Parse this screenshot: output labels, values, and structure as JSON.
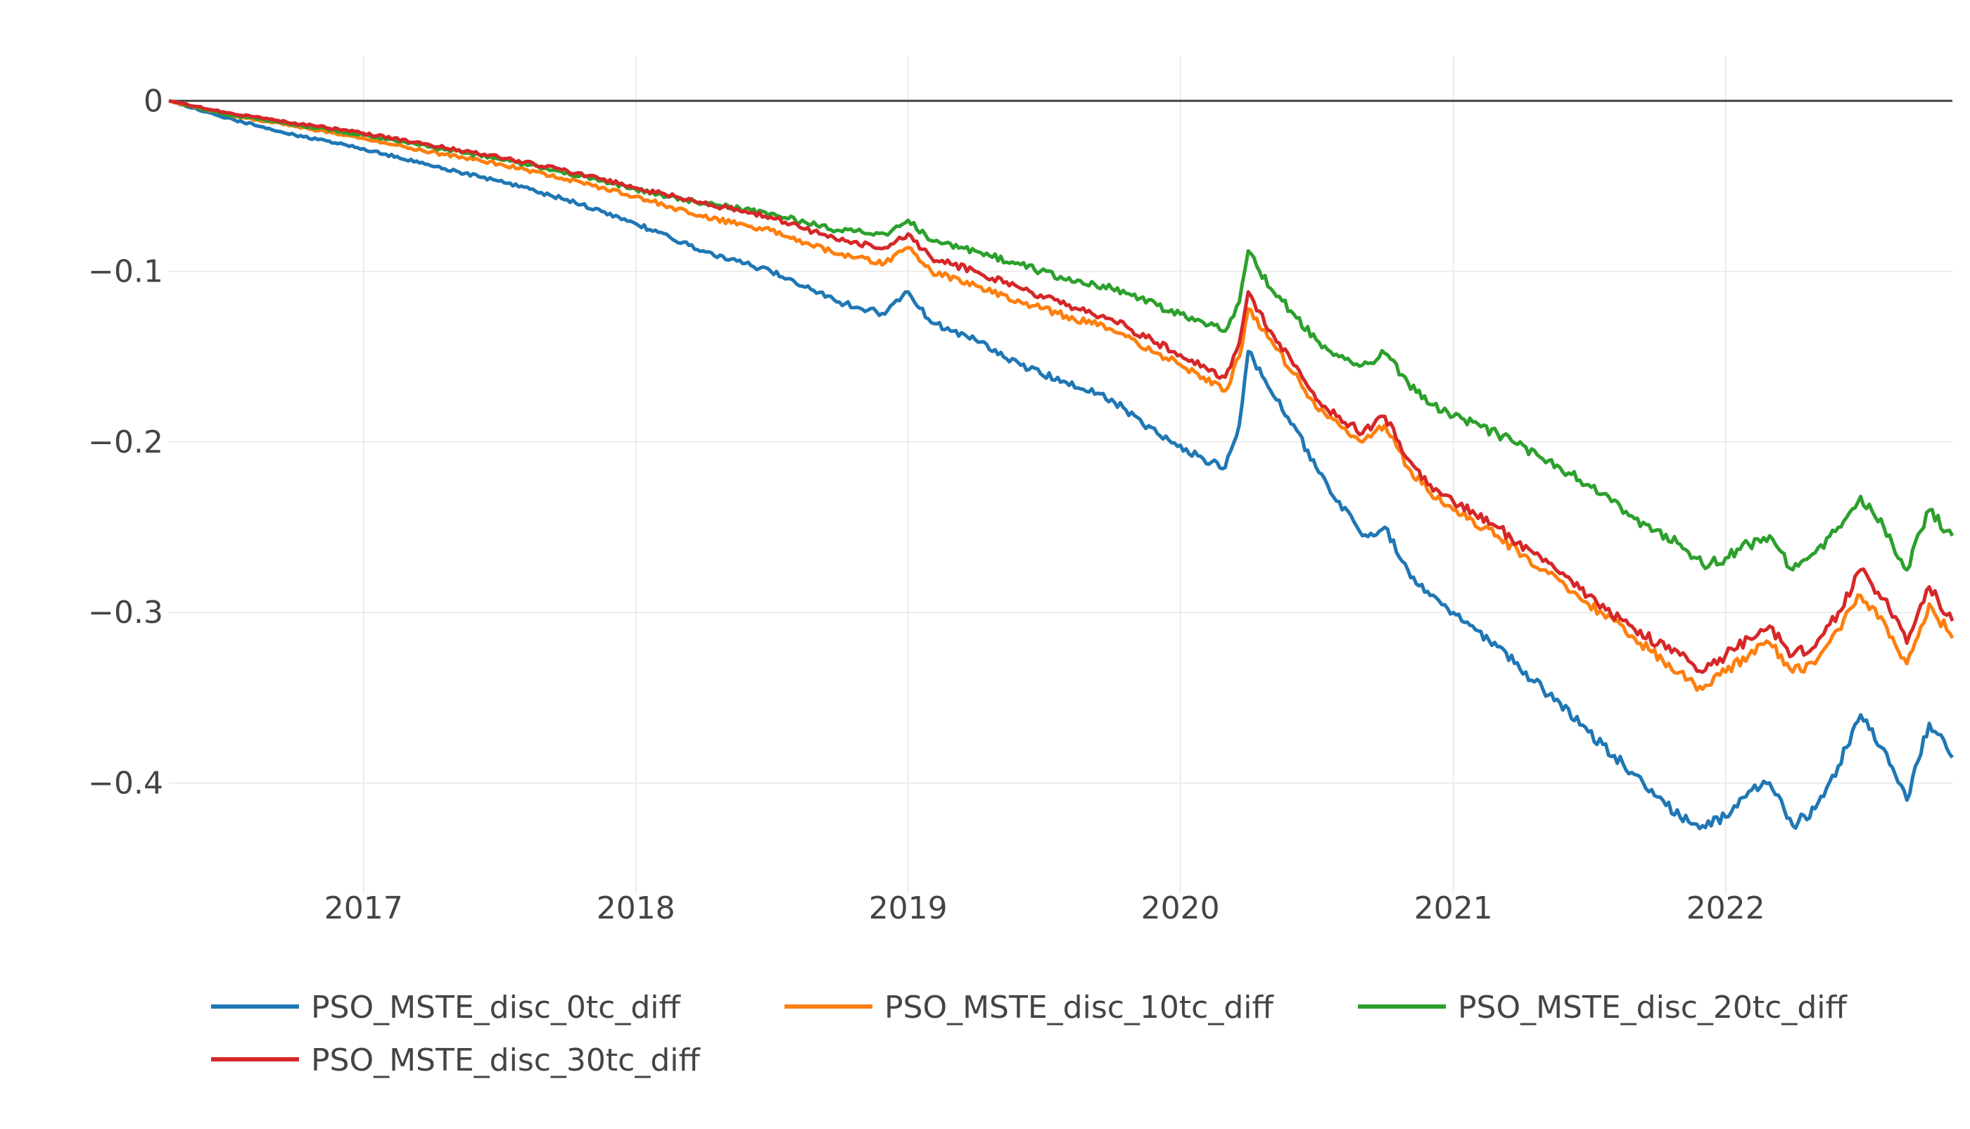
{
  "chart_data": {
    "type": "line",
    "title": "",
    "xlabel": "",
    "ylabel": "",
    "x_range": [
      "2016-04-15",
      "2022-11-01"
    ],
    "ylim": [
      -0.465,
      0.022
    ],
    "x_ticks": [
      {
        "date": "2017-01-01",
        "label": "2017"
      },
      {
        "date": "2018-01-01",
        "label": "2018"
      },
      {
        "date": "2019-01-01",
        "label": "2019"
      },
      {
        "date": "2020-01-01",
        "label": "2020"
      },
      {
        "date": "2021-01-01",
        "label": "2021"
      },
      {
        "date": "2022-01-01",
        "label": "2022"
      }
    ],
    "y_ticks": [
      {
        "value": 0,
        "label": "0"
      },
      {
        "value": -0.1,
        "label": "−0.1"
      },
      {
        "value": -0.2,
        "label": "−0.2"
      },
      {
        "value": -0.3,
        "label": "−0.3"
      },
      {
        "value": -0.4,
        "label": "−0.4"
      }
    ],
    "grid": true,
    "zero_line": true,
    "legend_position": "bottom",
    "series": [
      {
        "name": "PSO_MSTE_disc_0tc_diff",
        "color": "#1f77b4",
        "points": [
          [
            "2016-04-15",
            0.0
          ],
          [
            "2016-07-01",
            -0.01
          ],
          [
            "2016-10-01",
            -0.02
          ],
          [
            "2017-01-01",
            -0.028
          ],
          [
            "2017-04-01",
            -0.038
          ],
          [
            "2017-07-01",
            -0.047
          ],
          [
            "2017-10-01",
            -0.058
          ],
          [
            "2018-01-01",
            -0.072
          ],
          [
            "2018-04-01",
            -0.088
          ],
          [
            "2018-07-01",
            -0.1
          ],
          [
            "2018-10-01",
            -0.118
          ],
          [
            "2018-12-01",
            -0.125
          ],
          [
            "2019-01-01",
            -0.112
          ],
          [
            "2019-02-01",
            -0.13
          ],
          [
            "2019-04-01",
            -0.14
          ],
          [
            "2019-06-01",
            -0.155
          ],
          [
            "2019-08-01",
            -0.165
          ],
          [
            "2019-10-01",
            -0.175
          ],
          [
            "2019-12-01",
            -0.195
          ],
          [
            "2020-02-01",
            -0.21
          ],
          [
            "2020-03-01",
            -0.215
          ],
          [
            "2020-03-20",
            -0.19
          ],
          [
            "2020-04-01",
            -0.147
          ],
          [
            "2020-05-01",
            -0.17
          ],
          [
            "2020-06-01",
            -0.19
          ],
          [
            "2020-07-01",
            -0.215
          ],
          [
            "2020-08-01",
            -0.235
          ],
          [
            "2020-09-01",
            -0.255
          ],
          [
            "2020-10-01",
            -0.25
          ],
          [
            "2020-11-01",
            -0.275
          ],
          [
            "2020-12-01",
            -0.29
          ],
          [
            "2021-01-01",
            -0.3
          ],
          [
            "2021-03-01",
            -0.32
          ],
          [
            "2021-05-01",
            -0.345
          ],
          [
            "2021-07-01",
            -0.37
          ],
          [
            "2021-09-01",
            -0.395
          ],
          [
            "2021-11-01",
            -0.42
          ],
          [
            "2021-12-01",
            -0.425
          ],
          [
            "2022-01-01",
            -0.42
          ],
          [
            "2022-02-01",
            -0.405
          ],
          [
            "2022-03-01",
            -0.4
          ],
          [
            "2022-04-01",
            -0.425
          ],
          [
            "2022-05-01",
            -0.415
          ],
          [
            "2022-06-01",
            -0.39
          ],
          [
            "2022-07-01",
            -0.36
          ],
          [
            "2022-08-01",
            -0.38
          ],
          [
            "2022-09-01",
            -0.41
          ],
          [
            "2022-10-01",
            -0.365
          ],
          [
            "2022-11-01",
            -0.385
          ]
        ]
      },
      {
        "name": "PSO_MSTE_disc_10tc_diff",
        "color": "#ff7f0e",
        "points": [
          [
            "2016-04-15",
            0.0
          ],
          [
            "2016-07-01",
            -0.008
          ],
          [
            "2016-10-01",
            -0.015
          ],
          [
            "2017-01-01",
            -0.022
          ],
          [
            "2017-04-01",
            -0.03
          ],
          [
            "2017-07-01",
            -0.037
          ],
          [
            "2017-10-01",
            -0.046
          ],
          [
            "2018-01-01",
            -0.056
          ],
          [
            "2018-04-01",
            -0.068
          ],
          [
            "2018-07-01",
            -0.076
          ],
          [
            "2018-10-01",
            -0.09
          ],
          [
            "2018-12-01",
            -0.095
          ],
          [
            "2019-01-01",
            -0.086
          ],
          [
            "2019-02-01",
            -0.1
          ],
          [
            "2019-04-01",
            -0.108
          ],
          [
            "2019-06-01",
            -0.118
          ],
          [
            "2019-08-01",
            -0.126
          ],
          [
            "2019-10-01",
            -0.134
          ],
          [
            "2019-12-01",
            -0.148
          ],
          [
            "2020-02-01",
            -0.162
          ],
          [
            "2020-03-01",
            -0.17
          ],
          [
            "2020-03-20",
            -0.15
          ],
          [
            "2020-04-01",
            -0.122
          ],
          [
            "2020-05-01",
            -0.14
          ],
          [
            "2020-06-01",
            -0.16
          ],
          [
            "2020-07-01",
            -0.18
          ],
          [
            "2020-08-01",
            -0.19
          ],
          [
            "2020-09-01",
            -0.2
          ],
          [
            "2020-10-01",
            -0.19
          ],
          [
            "2020-11-01",
            -0.215
          ],
          [
            "2020-12-01",
            -0.23
          ],
          [
            "2021-01-01",
            -0.24
          ],
          [
            "2021-03-01",
            -0.255
          ],
          [
            "2021-05-01",
            -0.275
          ],
          [
            "2021-07-01",
            -0.295
          ],
          [
            "2021-09-01",
            -0.315
          ],
          [
            "2021-11-01",
            -0.335
          ],
          [
            "2021-12-01",
            -0.345
          ],
          [
            "2022-01-01",
            -0.335
          ],
          [
            "2022-02-01",
            -0.325
          ],
          [
            "2022-03-01",
            -0.318
          ],
          [
            "2022-04-01",
            -0.335
          ],
          [
            "2022-05-01",
            -0.33
          ],
          [
            "2022-06-01",
            -0.31
          ],
          [
            "2022-07-01",
            -0.29
          ],
          [
            "2022-08-01",
            -0.305
          ],
          [
            "2022-09-01",
            -0.33
          ],
          [
            "2022-10-01",
            -0.295
          ],
          [
            "2022-11-01",
            -0.315
          ]
        ]
      },
      {
        "name": "PSO_MSTE_disc_20tc_diff",
        "color": "#2ca02c",
        "points": [
          [
            "2016-04-15",
            0.0
          ],
          [
            "2016-07-01",
            -0.008
          ],
          [
            "2016-10-01",
            -0.014
          ],
          [
            "2017-01-01",
            -0.02
          ],
          [
            "2017-04-01",
            -0.027
          ],
          [
            "2017-07-01",
            -0.034
          ],
          [
            "2017-10-01",
            -0.042
          ],
          [
            "2018-01-01",
            -0.052
          ],
          [
            "2018-04-01",
            -0.06
          ],
          [
            "2018-07-01",
            -0.066
          ],
          [
            "2018-10-01",
            -0.076
          ],
          [
            "2018-12-01",
            -0.078
          ],
          [
            "2019-01-01",
            -0.07
          ],
          [
            "2019-02-01",
            -0.082
          ],
          [
            "2019-04-01",
            -0.088
          ],
          [
            "2019-06-01",
            -0.096
          ],
          [
            "2019-08-01",
            -0.105
          ],
          [
            "2019-10-01",
            -0.11
          ],
          [
            "2019-12-01",
            -0.12
          ],
          [
            "2020-02-01",
            -0.13
          ],
          [
            "2020-03-01",
            -0.135
          ],
          [
            "2020-03-20",
            -0.118
          ],
          [
            "2020-04-01",
            -0.088
          ],
          [
            "2020-05-01",
            -0.11
          ],
          [
            "2020-06-01",
            -0.125
          ],
          [
            "2020-07-01",
            -0.14
          ],
          [
            "2020-08-01",
            -0.15
          ],
          [
            "2020-09-01",
            -0.155
          ],
          [
            "2020-10-01",
            -0.148
          ],
          [
            "2020-11-01",
            -0.165
          ],
          [
            "2020-12-01",
            -0.178
          ],
          [
            "2021-01-01",
            -0.185
          ],
          [
            "2021-03-01",
            -0.195
          ],
          [
            "2021-05-01",
            -0.21
          ],
          [
            "2021-07-01",
            -0.225
          ],
          [
            "2021-09-01",
            -0.245
          ],
          [
            "2021-11-01",
            -0.26
          ],
          [
            "2021-12-01",
            -0.272
          ],
          [
            "2022-01-01",
            -0.268
          ],
          [
            "2022-02-01",
            -0.26
          ],
          [
            "2022-03-01",
            -0.255
          ],
          [
            "2022-04-01",
            -0.275
          ],
          [
            "2022-05-01",
            -0.265
          ],
          [
            "2022-06-01",
            -0.25
          ],
          [
            "2022-07-01",
            -0.232
          ],
          [
            "2022-08-01",
            -0.25
          ],
          [
            "2022-09-01",
            -0.275
          ],
          [
            "2022-10-01",
            -0.24
          ],
          [
            "2022-11-01",
            -0.255
          ]
        ]
      },
      {
        "name": "PSO_MSTE_disc_30tc_diff",
        "color": "#d62728",
        "points": [
          [
            "2016-04-15",
            0.0
          ],
          [
            "2016-07-01",
            -0.007
          ],
          [
            "2016-10-01",
            -0.013
          ],
          [
            "2017-01-01",
            -0.019
          ],
          [
            "2017-04-01",
            -0.026
          ],
          [
            "2017-07-01",
            -0.033
          ],
          [
            "2017-10-01",
            -0.041
          ],
          [
            "2018-01-01",
            -0.051
          ],
          [
            "2018-04-01",
            -0.06
          ],
          [
            "2018-07-01",
            -0.068
          ],
          [
            "2018-10-01",
            -0.082
          ],
          [
            "2018-12-01",
            -0.086
          ],
          [
            "2019-01-01",
            -0.078
          ],
          [
            "2019-02-01",
            -0.092
          ],
          [
            "2019-04-01",
            -0.1
          ],
          [
            "2019-06-01",
            -0.11
          ],
          [
            "2019-08-01",
            -0.12
          ],
          [
            "2019-10-01",
            -0.128
          ],
          [
            "2019-12-01",
            -0.142
          ],
          [
            "2020-02-01",
            -0.155
          ],
          [
            "2020-03-01",
            -0.162
          ],
          [
            "2020-03-20",
            -0.142
          ],
          [
            "2020-04-01",
            -0.112
          ],
          [
            "2020-05-01",
            -0.135
          ],
          [
            "2020-06-01",
            -0.155
          ],
          [
            "2020-07-01",
            -0.175
          ],
          [
            "2020-08-01",
            -0.185
          ],
          [
            "2020-09-01",
            -0.195
          ],
          [
            "2020-10-01",
            -0.185
          ],
          [
            "2020-11-01",
            -0.21
          ],
          [
            "2020-12-01",
            -0.225
          ],
          [
            "2021-01-01",
            -0.235
          ],
          [
            "2021-03-01",
            -0.25
          ],
          [
            "2021-05-01",
            -0.27
          ],
          [
            "2021-07-01",
            -0.29
          ],
          [
            "2021-09-01",
            -0.31
          ],
          [
            "2021-11-01",
            -0.325
          ],
          [
            "2021-12-01",
            -0.335
          ],
          [
            "2022-01-01",
            -0.325
          ],
          [
            "2022-02-01",
            -0.315
          ],
          [
            "2022-03-01",
            -0.308
          ],
          [
            "2022-04-01",
            -0.325
          ],
          [
            "2022-05-01",
            -0.32
          ],
          [
            "2022-06-01",
            -0.3
          ],
          [
            "2022-07-01",
            -0.275
          ],
          [
            "2022-08-01",
            -0.292
          ],
          [
            "2022-09-01",
            -0.318
          ],
          [
            "2022-10-01",
            -0.285
          ],
          [
            "2022-11-01",
            -0.305
          ]
        ]
      }
    ]
  }
}
